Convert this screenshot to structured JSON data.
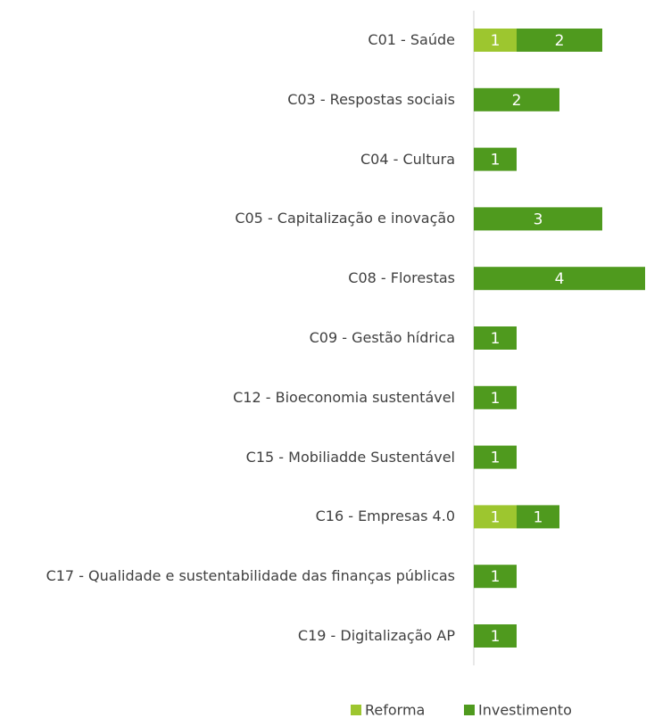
{
  "chart_data": {
    "type": "bar",
    "orientation": "horizontal",
    "stacked": true,
    "categories": [
      "C01 - Saúde",
      "C03 - Respostas sociais",
      "C04 - Cultura",
      "C05 - Capitalização e inovação",
      "C08 - Florestas",
      "C09 - Gestão hídrica",
      "C12 - Bioeconomia sustentável",
      "C15 - Mobiliadde Sustentável",
      "C16 - Empresas 4.0",
      "C17 - Qualidade e sustentabilidade das finanças públicas",
      "C19 - Digitalização AP"
    ],
    "series": [
      {
        "name": "Reforma",
        "color": "#9dc62f",
        "values": [
          1,
          0,
          0,
          0,
          0,
          0,
          0,
          0,
          1,
          0,
          0
        ]
      },
      {
        "name": "Investimento",
        "color": "#4f9a1e",
        "values": [
          2,
          2,
          1,
          3,
          4,
          1,
          1,
          1,
          1,
          1,
          1
        ]
      }
    ],
    "xlim": [
      0,
      4
    ],
    "legend": "bottom"
  }
}
